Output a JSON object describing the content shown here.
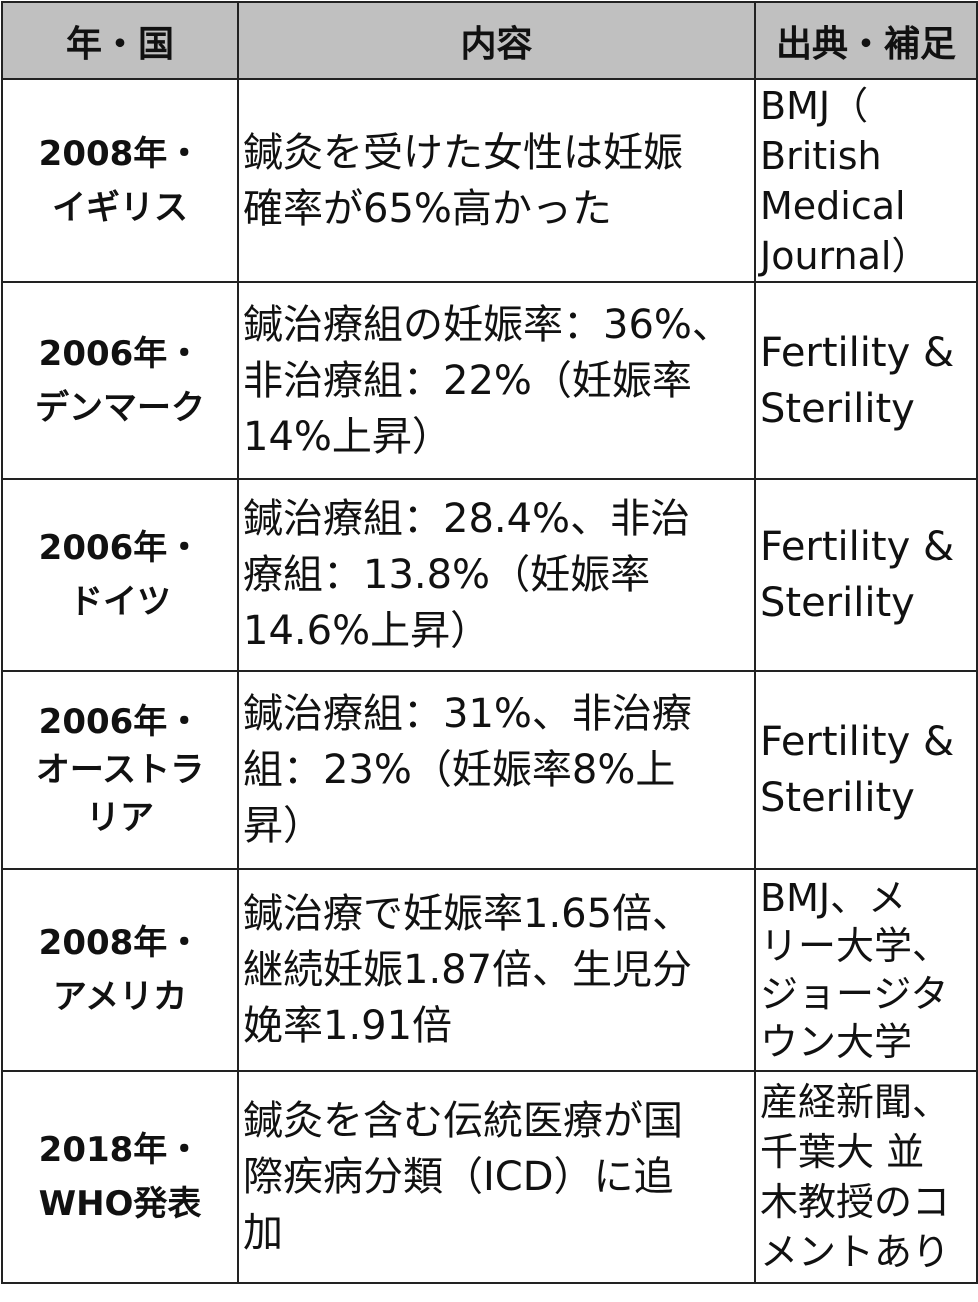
{
  "header": {
    "col1": "年・国",
    "col2": "内容",
    "col3": "出典・補足",
    "bg_color": "#c0c0c0"
  },
  "rows": [
    {
      "year_country": "2008年・\nイギリス",
      "content": "鍼灸を受けた女性は妊娠\n確率が65%高かった",
      "source": "BMJ（\nBritish\nMedical\nJournal）"
    },
    {
      "year_country": "2006年・\nデンマーク",
      "content": "鍼治療組の妊娠率：36%、\n非治療組：22%（妊娠率\n14%上昇）",
      "source": "Fertility &\nSterility"
    },
    {
      "year_country": "2006年・\nドイツ",
      "content": "鍼治療組：28.4%、非治\n療組：13.8%（妊娠率\n14.6%上昇）",
      "source": "Fertility &\nSterility"
    },
    {
      "year_country": "2006年・\nオーストラ\nリア",
      "content": "鍼治療組：31%、非治療\n組：23%（妊娠率8%上\n昇）",
      "source": "Fertility &\nSterility"
    },
    {
      "year_country": "2008年・\nアメリカ",
      "content": "鍼治療で妊娠率1.65倍、\n継続妊娠1.87倍、生児分\n娩率1.91倍",
      "source": "BMJ、メ\nリー大学、\nジョージタ\nウン大学"
    },
    {
      "year_country": "2018年・\nWHO発表",
      "content": "鍼灸を含む伝統医療が国\n際疾病分類（ICD）に追\n加",
      "source": "産経新聞、\n千葉大 並\n木教授のコ\nメントあり"
    }
  ]
}
